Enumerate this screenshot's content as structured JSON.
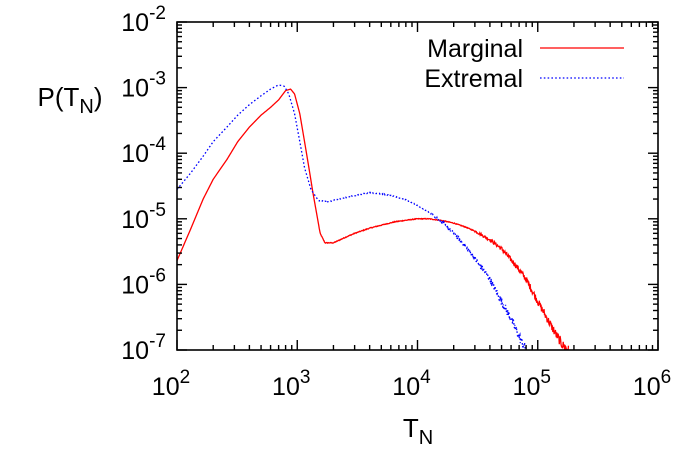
{
  "chart_data": {
    "type": "line",
    "xlabel": {
      "base": "T",
      "sub": "N"
    },
    "ylabel": {
      "base": "P(T",
      "sub": "N",
      "close": ")"
    },
    "xscale": "log",
    "yscale": "log",
    "xlim": [
      100,
      1000000
    ],
    "ylim": [
      1e-07,
      0.01
    ],
    "grid": false,
    "legend_position": "top-right",
    "x_ticks": [
      {
        "base": "10",
        "exp": "2"
      },
      {
        "base": "10",
        "exp": "3"
      },
      {
        "base": "10",
        "exp": "4"
      },
      {
        "base": "10",
        "exp": "5"
      },
      {
        "base": "10",
        "exp": "6"
      }
    ],
    "y_ticks": [
      {
        "base": "10",
        "exp": "-7"
      },
      {
        "base": "10",
        "exp": "-6"
      },
      {
        "base": "10",
        "exp": "-5"
      },
      {
        "base": "10",
        "exp": "-4"
      },
      {
        "base": "10",
        "exp": "-3"
      },
      {
        "base": "10",
        "exp": "-2"
      }
    ],
    "series": [
      {
        "name": "Marginal",
        "color": "#ff0000",
        "style": "solid",
        "noisy_from_x": 30000,
        "points": [
          [
            100,
            2.3e-06
          ],
          [
            130,
            7e-06
          ],
          [
            165,
            2e-05
          ],
          [
            200,
            4e-05
          ],
          [
            260,
            8e-05
          ],
          [
            320,
            0.00015
          ],
          [
            400,
            0.00025
          ],
          [
            500,
            0.00038
          ],
          [
            600,
            0.0005
          ],
          [
            700,
            0.00065
          ],
          [
            800,
            0.0009
          ],
          [
            880,
            0.00095
          ],
          [
            950,
            0.0008
          ],
          [
            1050,
            0.0004
          ],
          [
            1150,
            0.00015
          ],
          [
            1250,
            6e-05
          ],
          [
            1350,
            2.5e-05
          ],
          [
            1450,
            1.2e-05
          ],
          [
            1550,
            6e-06
          ],
          [
            1700,
            4.3e-06
          ],
          [
            2000,
            4.3e-06
          ],
          [
            2500,
            5.2e-06
          ],
          [
            3000,
            6e-06
          ],
          [
            4000,
            7.2e-06
          ],
          [
            5000,
            8e-06
          ],
          [
            6500,
            9e-06
          ],
          [
            8000,
            9.5e-06
          ],
          [
            10000,
            1e-05
          ],
          [
            12500,
            1e-05
          ],
          [
            16000,
            9.4e-06
          ],
          [
            20000,
            8.6e-06
          ],
          [
            25000,
            7.5e-06
          ],
          [
            30000,
            6.5e-06
          ],
          [
            40000,
            4.8e-06
          ],
          [
            50000,
            3.5e-06
          ],
          [
            65000,
            2e-06
          ],
          [
            80000,
            1.2e-06
          ],
          [
            100000,
            5.5e-07
          ],
          [
            120000,
            3e-07
          ],
          [
            140000,
            1.8e-07
          ],
          [
            160000,
            1.2e-07
          ],
          [
            180000,
            1e-07
          ]
        ]
      },
      {
        "name": "Extremal",
        "color": "#0000ff",
        "style": "dotted",
        "noisy_from_x": 13000,
        "points": [
          [
            100,
            2.8e-05
          ],
          [
            130,
            5e-05
          ],
          [
            165,
            9e-05
          ],
          [
            200,
            0.00015
          ],
          [
            260,
            0.00025
          ],
          [
            320,
            0.00038
          ],
          [
            400,
            0.00055
          ],
          [
            500,
            0.00075
          ],
          [
            600,
            0.00095
          ],
          [
            700,
            0.0011
          ],
          [
            780,
            0.00105
          ],
          [
            850,
            0.0008
          ],
          [
            950,
            0.0004
          ],
          [
            1050,
            0.00015
          ],
          [
            1150,
            6e-05
          ],
          [
            1300,
            2.8e-05
          ],
          [
            1500,
            1.9e-05
          ],
          [
            1800,
            1.8e-05
          ],
          [
            2200,
            2e-05
          ],
          [
            2800,
            2.2e-05
          ],
          [
            3500,
            2.4e-05
          ],
          [
            4000,
            2.5e-05
          ],
          [
            5000,
            2.4e-05
          ],
          [
            6500,
            2.2e-05
          ],
          [
            8000,
            1.95e-05
          ],
          [
            10000,
            1.6e-05
          ],
          [
            12500,
            1.25e-05
          ],
          [
            16000,
            9e-06
          ],
          [
            20000,
            6e-06
          ],
          [
            25000,
            3.8e-06
          ],
          [
            30000,
            2.5e-06
          ],
          [
            40000,
            1.2e-06
          ],
          [
            50000,
            5.5e-07
          ],
          [
            60000,
            3e-07
          ],
          [
            70000,
            1.6e-07
          ],
          [
            80000,
            1e-07
          ]
        ]
      }
    ]
  }
}
